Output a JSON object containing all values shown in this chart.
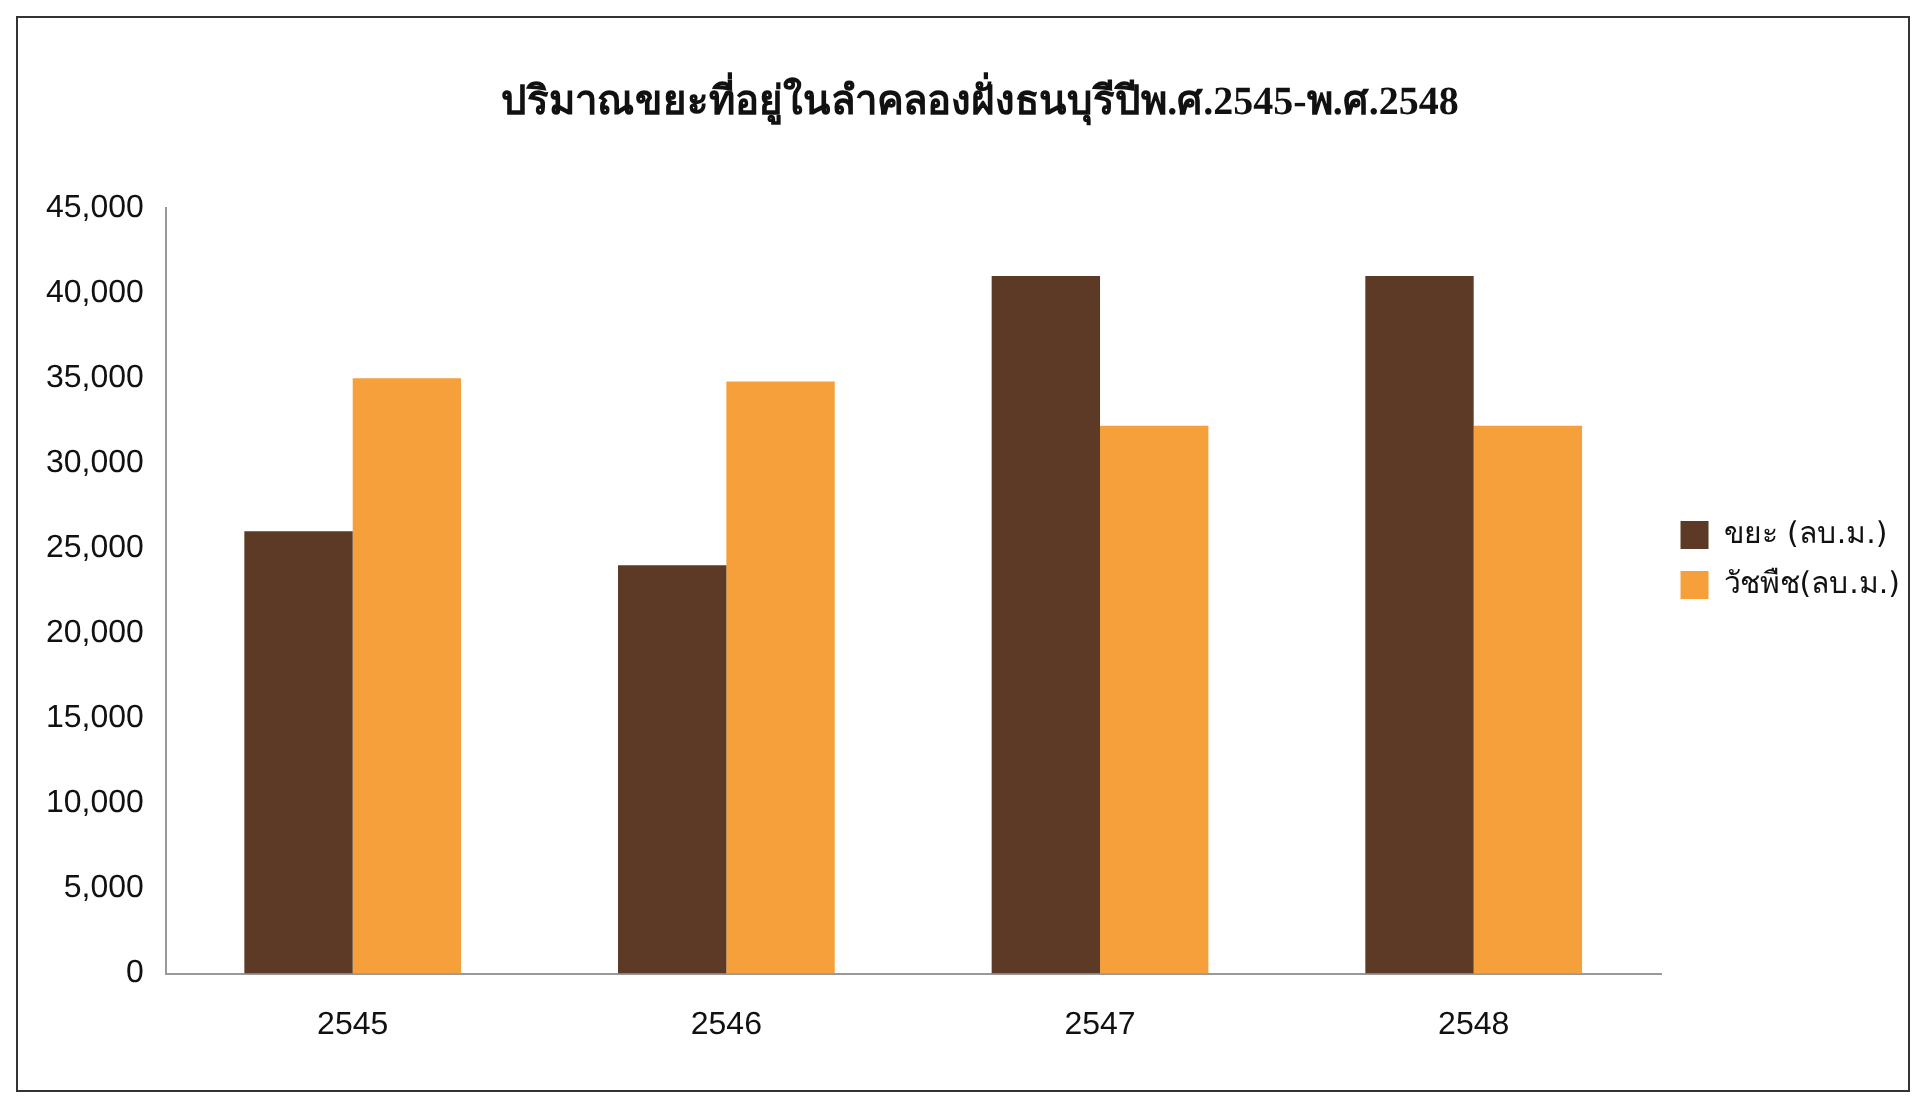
{
  "chart_data": {
    "type": "bar",
    "title": "ปริมาณขยะที่อยู่ในลำคลองฝั่งธนบุรีปีพ.ศ.2545-พ.ศ.2548",
    "categories": [
      "2545",
      "2546",
      "2547",
      "2548"
    ],
    "series": [
      {
        "name": "ขยะ (ลบ.ม.)",
        "color": "#5c3a26",
        "values": [
          26000,
          24000,
          41000,
          41000
        ]
      },
      {
        "name": "วัชพืช(ลบ.ม.)",
        "color": "#f5a03a",
        "values": [
          35000,
          34800,
          32200,
          32200
        ]
      }
    ],
    "ylim": [
      0,
      45000
    ],
    "yticks": [
      0,
      {
        "value": 5000,
        "label": "5,000"
      },
      {
        "value": 10000,
        "label": "10,000"
      },
      {
        "value": 15000,
        "label": "15,000"
      },
      {
        "value": 20000,
        "label": "20,000"
      },
      {
        "value": 25000,
        "label": "25,000"
      },
      {
        "value": 30000,
        "label": "30,000"
      },
      {
        "value": 35000,
        "label": "35,000"
      },
      {
        "value": 40000,
        "label": "40,000"
      },
      {
        "value": 45000,
        "label": "45,000"
      }
    ],
    "grid": false,
    "legend": "right"
  }
}
